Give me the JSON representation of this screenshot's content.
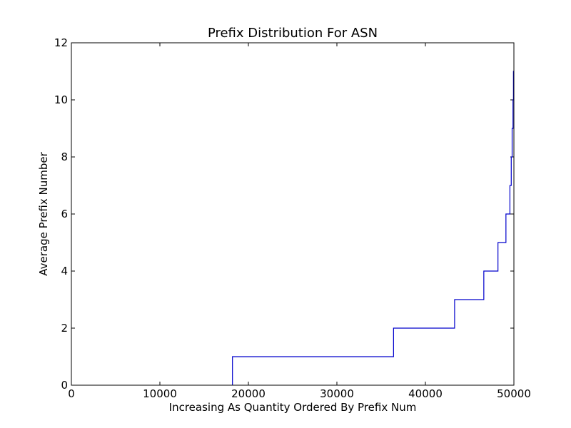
{
  "chart_data": {
    "type": "line",
    "title": "Prefix Distribution For ASN",
    "xlabel": "Increasing As Quantity Ordered By Prefix Num",
    "ylabel": "Average Prefix Number",
    "xlim": [
      0,
      50000
    ],
    "ylim": [
      0,
      12
    ],
    "x_ticks": [
      "0",
      "10000",
      "20000",
      "30000",
      "40000",
      "50000"
    ],
    "y_ticks": [
      "0",
      "2",
      "4",
      "6",
      "8",
      "10",
      "12"
    ],
    "grid": false,
    "series": [
      {
        "color": "#0000cc",
        "step": true,
        "x": [
          18200,
          18200,
          36400,
          36400,
          43300,
          43300,
          46600,
          46600,
          48200,
          48200,
          49100,
          49100,
          49550,
          49550,
          49700,
          49700,
          49800,
          49800,
          49900,
          49900,
          49950,
          49950,
          50000
        ],
        "y": [
          0,
          1,
          1,
          2,
          2,
          3,
          3,
          4,
          4,
          5,
          5,
          6,
          6,
          7,
          7,
          8,
          8,
          9,
          9,
          10,
          10,
          11,
          11
        ]
      }
    ]
  }
}
